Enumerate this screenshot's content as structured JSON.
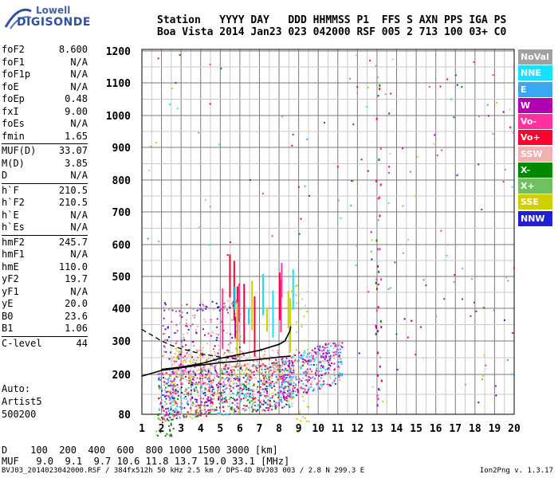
{
  "logo": {
    "line1": "Lowell",
    "line2": "DIGISONDE"
  },
  "header": {
    "line1": "Station   YYYY DAY   DDD HHMMSS P1  FFS S AXN PPS IGA PS",
    "line2": "Boa Vista 2014 Jan23 023 042000 RSF 005 2 713 100 03+ C0"
  },
  "params": [
    [
      {
        "k": "foF2",
        "v": "8.600"
      },
      {
        "k": "foF1",
        "v": "N/A"
      },
      {
        "k": "foF1p",
        "v": "N/A"
      },
      {
        "k": "foE",
        "v": "N/A"
      },
      {
        "k": "foEp",
        "v": "0.48"
      },
      {
        "k": "fxI",
        "v": "9.00"
      },
      {
        "k": "foEs",
        "v": "N/A"
      },
      {
        "k": "fmin",
        "v": "1.65"
      }
    ],
    [
      {
        "k": "MUF(D)",
        "v": "33.07"
      },
      {
        "k": "M(D)",
        "v": "3.85"
      },
      {
        "k": "D",
        "v": "N/A"
      }
    ],
    [
      {
        "k": "h`F",
        "v": "210.5"
      },
      {
        "k": "h`F2",
        "v": "210.5"
      },
      {
        "k": "h`E",
        "v": "N/A"
      },
      {
        "k": "h`Es",
        "v": "N/A"
      }
    ],
    [
      {
        "k": "hmF2",
        "v": "245.7"
      },
      {
        "k": "hmF1",
        "v": "N/A"
      },
      {
        "k": "hmE",
        "v": "110.0"
      },
      {
        "k": "yF2",
        "v": "19.7"
      },
      {
        "k": "yF1",
        "v": "N/A"
      },
      {
        "k": "yE",
        "v": "20.0"
      },
      {
        "k": "B0",
        "v": "23.6"
      },
      {
        "k": "B1",
        "v": "1.06"
      }
    ],
    [
      {
        "k": "C-level",
        "v": "44"
      }
    ]
  ],
  "artist": {
    "label": "Auto:",
    "name": "Artist5",
    "version": "500200"
  },
  "legend": [
    {
      "label": "NoVal",
      "color": "#a0a0a0"
    },
    {
      "label": "NNE",
      "color": "#18e0ff"
    },
    {
      "label": "E",
      "color": "#3aa8f0"
    },
    {
      "label": "W",
      "color": "#b000b0"
    },
    {
      "label": "Vo-",
      "color": "#ff30a0"
    },
    {
      "label": "Vo+",
      "color": "#ff0030"
    },
    {
      "label": "SSW",
      "color": "#f4b0b0"
    },
    {
      "label": "X-",
      "color": "#008800"
    },
    {
      "label": "X+",
      "color": "#70c060"
    },
    {
      "label": "SSE",
      "color": "#d0d000"
    },
    {
      "label": "NNW",
      "color": "#2020d0"
    }
  ],
  "dmuf": {
    "d_line": "D    100  200  400  600  800 1000 1500 3000 [km]",
    "muf_line": "MUF   9.0  9.1  9.7 10.6 11.8 13.7 19.0 33.1 [MHz]"
  },
  "footer": "BVJ03_2014023042000.RSF / 384fx512h 50 kHz 2.5 km / DPS-4D BVJ03 003 / 2.8 N 299.3 E",
  "version": "Ion2Png v. 1.3.17",
  "chart_data": {
    "type": "scatter",
    "x_ticks": [
      "1",
      "2",
      "3",
      "4",
      "5",
      "6",
      "7",
      "8",
      "9",
      "10",
      "11",
      "12",
      "13",
      "14",
      "15",
      "16",
      "17",
      "18",
      "19",
      "20"
    ],
    "y_ticks": [
      "80",
      "200",
      "300",
      "400",
      "500",
      "600",
      "700",
      "800",
      "900",
      "1000",
      "1100",
      "1200"
    ],
    "ylim": [
      80,
      1200
    ],
    "grid": true,
    "trace_virtual_height": {
      "x": [
        1.0,
        2.0,
        3.0,
        4.0,
        5.0,
        6.0,
        7.0,
        8.0,
        8.6
      ],
      "y": [
        195,
        212,
        220,
        228,
        235,
        240,
        245,
        252,
        255
      ]
    },
    "trace_profile": {
      "x": [
        2.0,
        3.0,
        4.0,
        5.0,
        6.0,
        7.0,
        8.0,
        8.3,
        8.45,
        8.55,
        8.6
      ],
      "y": [
        215,
        222,
        232,
        248,
        260,
        272,
        290,
        300,
        318,
        330,
        345
      ]
    },
    "trace_extrapolated": {
      "x": [
        1.0,
        1.5,
        2.0,
        2.5,
        3.0,
        4.0,
        5.0,
        6.0
      ],
      "y": [
        335,
        318,
        300,
        287,
        277,
        262,
        252,
        245
      ]
    }
  }
}
